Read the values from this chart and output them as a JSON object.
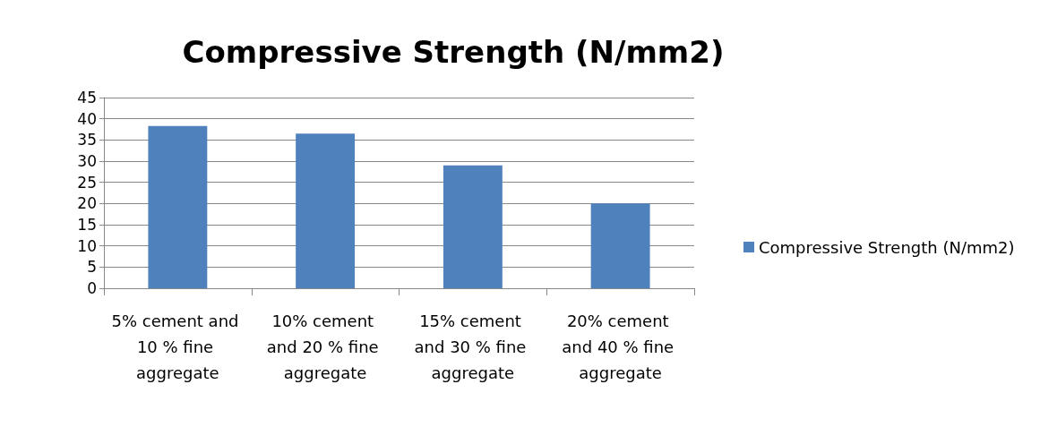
{
  "chart_data": {
    "type": "bar",
    "title": "Compressive Strength (N/mm2)",
    "categories": [
      "5% cement and 10 % fine aggregate",
      "10% cement and 20 % fine aggregate",
      "15% cement and 30 % fine aggregate",
      "20% cement and 40 % fine aggregate"
    ],
    "series": [
      {
        "name": "Compressive Strength (N/mm2)",
        "color": "#4f81bd",
        "values": [
          38.3,
          36.5,
          29.0,
          20.0
        ]
      }
    ],
    "ylim": [
      0,
      45
    ],
    "yticks": [
      0,
      5,
      10,
      15,
      20,
      25,
      30,
      35,
      40,
      45
    ],
    "grid": true,
    "legend": "right"
  }
}
